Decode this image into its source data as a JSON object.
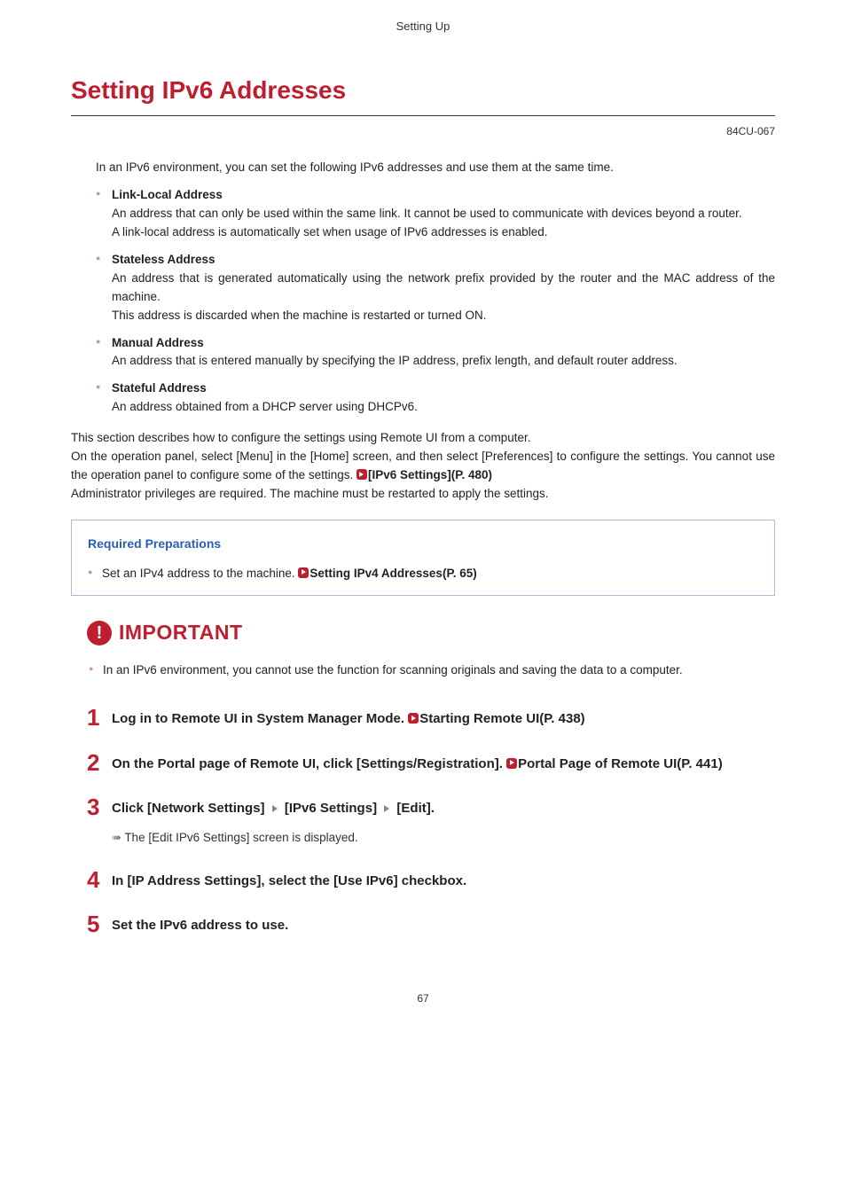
{
  "header": {
    "breadcrumb": "Setting Up"
  },
  "title": "Setting IPv6 Addresses",
  "doc_code": "84CU-067",
  "intro": "In an IPv6 environment, you can set the following IPv6 addresses and use them at the same time.",
  "address_types": [
    {
      "name": "Link-Local Address",
      "lines": [
        "An address that can only be used within the same link. It cannot be used to communicate with devices beyond a router.",
        "A link-local address is automatically set when usage of IPv6 addresses is enabled."
      ]
    },
    {
      "name": "Stateless Address",
      "lines": [
        "An address that is generated automatically using the network prefix provided by the router and the MAC address of the machine.",
        "This address is discarded when the machine is restarted or turned ON."
      ]
    },
    {
      "name": "Manual Address",
      "lines": [
        "An address that is entered manually by specifying the IP address, prefix length, and default router address."
      ]
    },
    {
      "name": "Stateful Address",
      "lines": [
        "An address obtained from a DHCP server using DHCPv6."
      ]
    }
  ],
  "context": {
    "line1": "This section describes how to configure the settings using Remote UI from a computer.",
    "line2_pre": "On the operation panel, select [Menu] in the [Home] screen, and then select [Preferences] to configure the settings. You cannot use the operation panel to configure some of the settings. ",
    "line2_link": "[IPv6 Settings](P. 480)",
    "line3": "Administrator privileges are required. The machine must be restarted to apply the settings."
  },
  "prep": {
    "title": "Required Preparations",
    "item_pre": "Set an IPv4 address to the machine. ",
    "item_link": "Setting IPv4 Addresses(P. 65)"
  },
  "important": {
    "label": "IMPORTANT",
    "text": "In an IPv6 environment, you cannot use the function for scanning originals and saving the data to a computer."
  },
  "steps": {
    "s1_pre": "Log in to Remote UI in System Manager Mode. ",
    "s1_link": "Starting Remote UI(P. 438)",
    "s2_pre": "On the Portal page of Remote UI, click [Settings/Registration]. ",
    "s2_link": "Portal Page of Remote UI(P. 441)",
    "s3_a": "Click [Network Settings] ",
    "s3_b": " [IPv6 Settings] ",
    "s3_c": " [Edit].",
    "s3_sub": "The [Edit IPv6 Settings] screen is displayed.",
    "s4": "In [IP Address Settings], select the [Use IPv6] checkbox.",
    "s5": "Set the IPv6 address to use."
  },
  "page_number": "67"
}
